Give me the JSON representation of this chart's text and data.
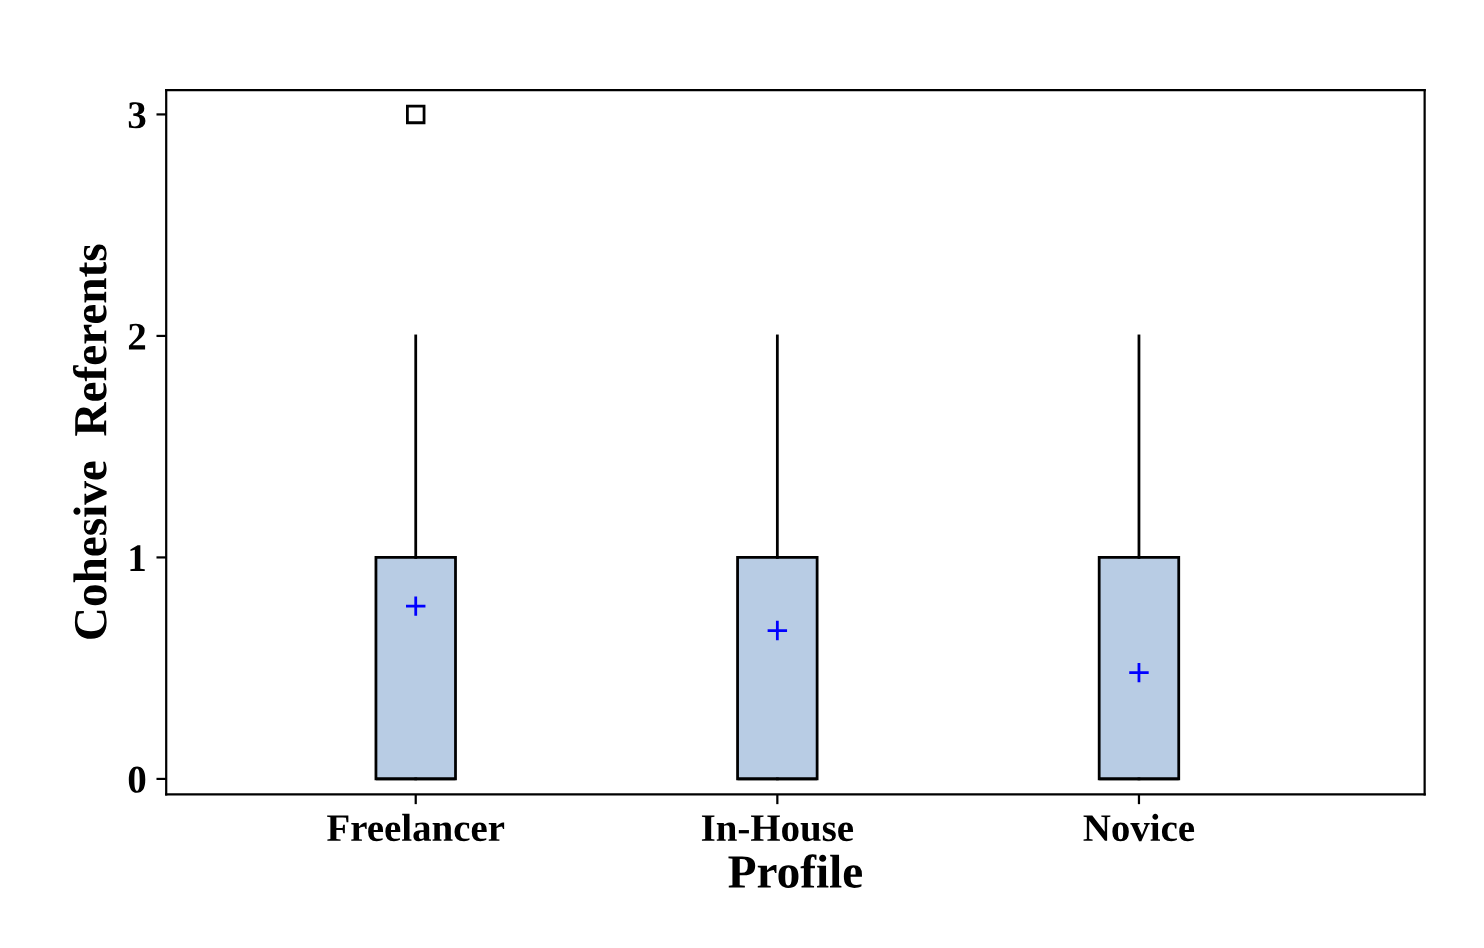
{
  "chart_data": {
    "type": "box",
    "xlabel": "Profile",
    "ylabel": "Cohesive  Referents",
    "categories": [
      "Freelancer",
      "In-House",
      "Novice"
    ],
    "series": [
      {
        "color": "#b8cce4",
        "boxes": [
          {
            "low": 0,
            "q1": 0,
            "median": 0,
            "q3": 1,
            "high": 2,
            "mean": 0.78,
            "outliers": [
              3
            ]
          },
          {
            "low": 0,
            "q1": 0,
            "median": 0,
            "q3": 1,
            "high": 2,
            "mean": 0.67
          },
          {
            "low": 0,
            "q1": 0,
            "median": 0,
            "q3": 1,
            "high": 2,
            "mean": 0.48
          }
        ]
      }
    ],
    "ylim": [
      -0.07,
      3.11
    ],
    "yticks": [
      0,
      1,
      2,
      3
    ],
    "grid": false,
    "legend": false
  }
}
